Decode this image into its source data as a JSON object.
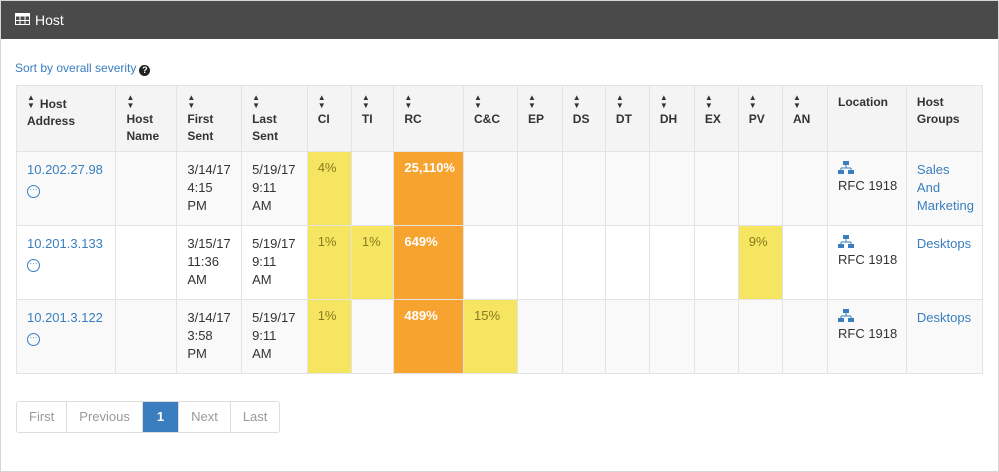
{
  "panel": {
    "title": "Host",
    "icon": "table-grid-icon"
  },
  "sort_link": {
    "label": "Sort by overall severity",
    "help_icon": "question-circle-icon"
  },
  "table": {
    "columns": [
      {
        "label": "Host Address",
        "sortable": true,
        "sort_inline": true
      },
      {
        "label": "Host Name",
        "sortable": true
      },
      {
        "label": "First Sent",
        "sortable": true
      },
      {
        "label": "Last Sent",
        "sortable": true
      },
      {
        "label": "CI",
        "sortable": true
      },
      {
        "label": "TI",
        "sortable": true
      },
      {
        "label": "RC",
        "sortable": true
      },
      {
        "label": "C&C",
        "sortable": true
      },
      {
        "label": "EP",
        "sortable": true
      },
      {
        "label": "DS",
        "sortable": true
      },
      {
        "label": "DT",
        "sortable": true
      },
      {
        "label": "DH",
        "sortable": true
      },
      {
        "label": "EX",
        "sortable": true
      },
      {
        "label": "PV",
        "sortable": true
      },
      {
        "label": "AN",
        "sortable": true
      },
      {
        "label": "Location",
        "sortable": false
      },
      {
        "label": "Host Groups",
        "sortable": false
      }
    ],
    "rows": [
      {
        "host_address": "10.202.27.98",
        "host_name": "",
        "first_sent": "3/14/17 4:15 PM",
        "last_sent": "5/19/17 9:11 AM",
        "ci": "4%",
        "ti": "",
        "rc": "25,110%",
        "cc": "",
        "ep": "",
        "ds": "",
        "dt": "",
        "dh": "",
        "ex": "",
        "pv": "",
        "an": "",
        "location": "RFC 1918",
        "host_groups": "Sales And Marketing"
      },
      {
        "host_address": "10.201.3.133",
        "host_name": "",
        "first_sent": "3/15/17 11:36 AM",
        "last_sent": "5/19/17 9:11 AM",
        "ci": "1%",
        "ti": "1%",
        "rc": "649%",
        "cc": "",
        "ep": "",
        "ds": "",
        "dt": "",
        "dh": "",
        "ex": "",
        "pv": "9%",
        "an": "",
        "location": "RFC 1918",
        "host_groups": "Desktops"
      },
      {
        "host_address": "10.201.3.122",
        "host_name": "",
        "first_sent": "3/14/17 3:58 PM",
        "last_sent": "5/19/17 9:11 AM",
        "ci": "1%",
        "ti": "",
        "rc": "489%",
        "cc": "15%",
        "ep": "",
        "ds": "",
        "dt": "",
        "dh": "",
        "ex": "",
        "pv": "",
        "an": "",
        "location": "RFC 1918",
        "host_groups": "Desktops"
      }
    ]
  },
  "colors": {
    "severity_yellow": "#f5e560",
    "severity_orange": "#f7a330",
    "link": "#3a7ebf",
    "header_bg": "#4a4a4a"
  },
  "pagination": {
    "first": "First",
    "previous": "Previous",
    "current": "1",
    "next": "Next",
    "last": "Last"
  }
}
